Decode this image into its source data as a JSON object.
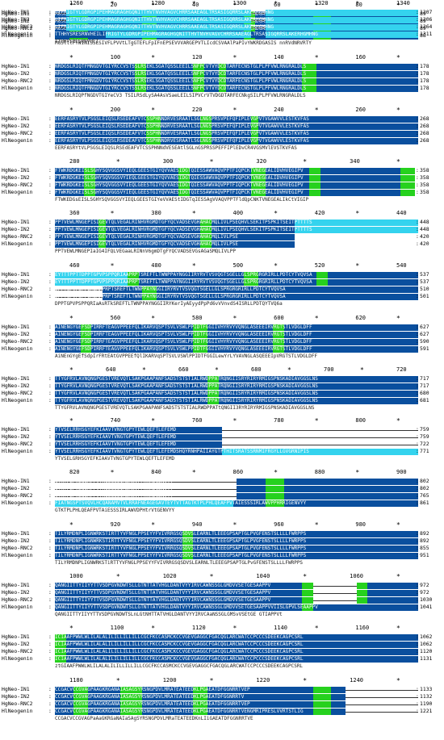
{
  "sequences": [
    "HgNeo-IN1",
    "HgNeo-IN2",
    "HgNeo-RNC2",
    "HlNeogenin"
  ],
  "colors": {
    "identical": "#0a4f9e",
    "similar": "#26d11e",
    "insert": "#34d3ee",
    "text_on_dark": "#ffffff"
  },
  "blocks": [
    {
      "ruler": [
        "*",
        "20",
        "*",
        "40",
        "*",
        "60",
        "*",
        "80",
        "*"
      ],
      "end_numbers": [
        "89",
        "89",
        "89",
        "88"
      ],
      "rows": [
        "MGSLTLFTWINISSLSIVFLPVVTLTGGTEFLFPIFNEPSEVVVARGEPVTLICRVAAPPFAVVYWERDGASLSSNRNVRTY",
        "MGSLTLFTWINISSLSIVFLPVVTLTGGTEFLFPIFNEPSEVVVARGEPVTLICRVAAPPFAVVYWERDGASLSSNRNVRTY",
        "MGSLTLFTWINISSLSIVFLPVVTLTGGTEFLFPIFNEPSEVVVARGEPVTLICRVAAPPFAVVYWERDGASLSSNRNVRTY",
        "MGSLTLFTWINISSLSIVFLPVVTLTGGTEFLFPIFNEPSEVVVARGEPVTLICRVAAPPFAVVYWERDGASLSSNRNVRTY"
      ],
      "consensus": "MGSltlFTWINISSLSIVFLPVVtLTgGTEFLFpIFnEPSEVVVARGEPVTLIcdCSVAAlPaPIvYWKRDGASIS nnRVdNRVRTY"
    },
    {
      "ruler": [
        "*",
        "100",
        "*",
        "120",
        "*",
        "140",
        "*",
        "160",
        "*"
      ],
      "end_numbers": [
        "178",
        "178",
        "178",
        "178"
      ],
      "rows": [
        "NRDGSLRIQTFMNGDVTGIYRCCVSTSSLRSEKLSGATQSSLEEILSNFPCVTVYDCDTARFECNSTGLPLPFVWLRNGRALDLS",
        "NRDGSLRIQTFMNGDVTGIYRCCVSTSSLRSEKLSGATQSSLEEILSNFPCVTVYDCDTARFECNSTGLPLPFVWLRNGRALDLS",
        "NRDGSLRIQTFMNGDVTGIYRCCVSTSSLRSEKLSGATQSSLEEILSNFPCVTVYDCDTARFECNSTGLPLPFVWLRNGRALDLS",
        "NRDGSLRIQTFMNGDVTGIYRCCVSTSSLRSEKLSGATQSSLEEILSNFPCVTVYDCDTARFECNSTGLPLPFVWLRNGRALDLS"
      ],
      "consensus": "NRDGSLRIQPfNGDVTGIYeCV3 TSILRSdLySA4AsVSaeLEILSIPVCrVTVDGDTARFECNkgSILPLPFVWLRNGRALDLS"
    },
    {
      "ruler": [
        "*",
        "200",
        "*",
        "220",
        "*",
        "240",
        "*",
        "260",
        "*"
      ],
      "end_numbers": [
        "268",
        "268",
        "268",
        "268"
      ],
      "rows": [
        "EERFASRYTVLPSGSLEIQSLRSEDEAFVTCSSPHNNDRVESRAATLSGLNGSPRSVPEFQFIPLEVGPVTVGAWVVLESTKVFAS",
        "EERFASRYTVLPSGSLEIQSLRSEDEAFVTCSSPHNNDRVESRAATLSGLNGSPRSVPEFQFIPLEVGPVTVGAWVVLESTKVFAS",
        "EERFASRYTVLPSGSLEIQSLRSEDEAFVTCSSPHNNDRVESRAATLSGLNGSPRSVPEFQFIPLEVGPVTVGAWVVLESTKVFAS",
        "EERFASRYTVLPSGSLEIQSLRSEDEAFVTCSSPHNNDRVESRAATLSGLNGSPRSVPEFQFIPLEVGPVTVGAWVVLESTKVFAS"
      ],
      "consensus": "EERFASRYtVLPSGSLEIQSLRSEdEAFVTCSSPHNNdVESEAtlSGLnGSPRSSPEFFIPlEDvCR4VGSMVlEVSTKVFAS"
    },
    {
      "ruler": [
        "280",
        "*",
        "300",
        "*",
        "320",
        "*",
        "340",
        "*"
      ],
      "end_numbers": [
        "358",
        "358",
        "358",
        "358"
      ],
      "rows": [
        "FTWKRDGKEISLSGHYSQVGGSVYIEQLGEESTGIYQVVAESIDGTQIESSAWVAQVPPTFIQPCKTVNEGEALIDVHVEGIPV",
        "FTWKRDGKEISLSGHYSQVGGSVYIEQLGEESTGIYQVVAESIDGTQIESSAWVAQVPPTFIQPCKTVNEGEALIDVHVEGIPV",
        "FTWKRDGKEISLSGHYSQVGGSVYIEQLGEESTGIYQVVAESIDGTQIESSAWVAQVPPTFIQPCKTVNEGEALIDVHVEGIPV",
        "FTWKRDGKEISLSGHYSQVGGSVYIEQLGEESTGIYQVVAESIDGTQIESSAWVAQVPPTFIQPCKTVNEGEALIDVHVEGIPV"
      ],
      "consensus": "FTWKEDGsEISLSGHYSQVGGSVYIEQLGEESTGIYeVVAEStIDGTqIESSAgVVAQVPPTFldQpCNKTVNEGEALIkCtVIGIP"
    },
    {
      "ruler": [
        "360",
        "*",
        "380",
        "*",
        "400",
        "*",
        "420",
        "*",
        "440"
      ],
      "end_numbers": [
        "448",
        "448",
        "420",
        "420"
      ],
      "rows": [
        "PPTVEWLMNGEPISIGEVTQLVEGALRINHVRGMDTGFYQCVADSEVGHAHACMQLIVLPSEQHVLSEKITPSPKITSEITPTTTTS",
        "PPTVEWLMNGEPISIGEVTQLVEGALRINHVRGMDTGFYQCVADSEVGHAHACMQLIVLPSEQHVLSEKITPSPKITSEITPTTTTS",
        "PPTVEWLMNGEPISIGEVTQLVEGALRINHVRGMDTGFYQCVADSEVGHAHACMQLIVLPSE",
        "PPTVEWLMNGEPISIGEVTQLVEGALRINHVRGMDTGFYQCVADSEVGHAHACMQLIVLPSE"
      ],
      "consensus": "PPTVEWLMNGEPIaIG4IFQLVEGaaLRINnV6gmDTgFYQCVADSEVGsAGaSMQLIVLPP"
    },
    {
      "ruler": [
        "460",
        "*",
        "480",
        "*",
        "500",
        "*",
        "520",
        "*",
        "540"
      ],
      "end_numbers": [
        "537",
        "537",
        "510",
        "501"
      ],
      "rows": [
        "EYTTTPPTTDPPTGPVPSPPQRIAAPRPTSREFTLTWNPPAYNGGIIRYRVTVSVQGTSGELLGLSPRGRGRIRLLPDTCYTVQVSA",
        "EYTTTPPTTDPPTGPVPSPPQRIAAPRPTSREFTLTWNPPAYNGGIIRYRVTVSVQGTSGELLGLSPRGRGRIRLLPDTCYTVQVSA",
        "DPPTGPVPSPPQRIAAPRPTSREFTLTWNPPAYNGGIIRYRVTVSVQGTSGELLGLSPRGRGRIRLLPDTCYTVQVSA",
        "DPPTGPVPSPPQRIAAPRPTSREFTLTWNPPAYNGGIIRYRVTVSVQGTSGELLGLSPRGRGRIRLLPDTCYTVQVSA"
      ],
      "consensus": "DPPTGPVPSPPQRIaAsRTkSREFTLTWNPPAYNGGIIRYKerIyAEyydPpPd6vVVnvdS4ISRLLPDTQYTVQ6a"
    },
    {
      "ruler": [
        "*",
        "560",
        "*",
        "580",
        "*",
        "600",
        "*",
        "620",
        "*"
      ],
      "end_numbers": [
        "627",
        "627",
        "590",
        "591"
      ],
      "rows": [
        "AINENGYGEFSDPIRRFTEAGVPPEEFQLIKARVQSPTSVLVSWLPPIDTFGGIIVHYRVYVQNGLASEEEIRVRGTSTLVDGLDFF",
        "AINENGYGEFSDPIRRFTEAGVPPEEFQLIKARVQSPTSVLVSWLPPIDTFGGIIVHYRVYVQNGLASEEEIRVRGTSTLVDGLDFF",
        "AINENGYGEFSDPIRRFTEAGVPPEEFQLIKARVQSPTSVLVSWLPPIDTFGGIIVHYRVYVQNGLASEEEIRVRGTSTLVDGLDFF",
        "AINENGYGEFSDPIRRFTEAGVPPEEFQLIKARVQSPTSVLVSWLPPIDTFGGIIVHYRVYVQNGLASEEEIRVRGTSTLVDGLDFF"
      ],
      "consensus": "AiNEnGYgEfSdpIrFRtEAtGVPPEEfQlIKARVqSPTSVLVSWlPPIDTFGGILewYrLYVAVNGLASQEEEIpVRGTSTLVDGLDFF"
    },
    {
      "ruler": [
        "*",
        "640",
        "*",
        "660",
        "*",
        "680",
        "*",
        "700",
        "*",
        "720"
      ],
      "end_numbers": [
        "717",
        "717",
        "680",
        "681"
      ],
      "rows": [
        "TTYGFRVLAVNQNGPGESTVREVQTLSAKPGAAPANFSADSTSTSTIALRWDPPATRQNGIISRYRIRYRMIGSPNSKADIAVGGSLNS",
        "TTYGFRVLAVNQNGPGESTVREVQTLSAKPGAAPANFSADSTSTSTIALRWDPPATRQNGIISRYRIRYRMIGSPNSKADIAVGGSLNS",
        "TTYGFRVLAVNQNGPGESTVREVQTLSAKPGAAPANFSADSTSTSTIALRWDPPATRQNGIISRYRIRYRMIGSPNSKADIAVGGSLNS",
        "TTYGFRVLAVNQNGPGESTVREVQTLSAKPGAAPANFSADSTSTSTIALRWDPPATRQNGIISRYRIRYRMIGSPNSKADIAVGGSLNS"
      ],
      "consensus": "TTYGFRVLAVNQNGPGESTVREVQTLSAKPGAAPANFSADSTSTSTIALRWDPPATtQNGII3RYRIRYRMIGSPNSKADIAVGGSLNS"
    },
    {
      "ruler": [
        "*",
        "740",
        "*",
        "760",
        "*",
        "780",
        "*",
        "800",
        "*"
      ],
      "end_numbers": [
        "759",
        "759",
        "722",
        "771"
      ],
      "rows": [
        "YTVSELRRHSGYEFKIAAVTVNGTGPYTEWLQEFTLEFEMD",
        "YTVSELRRHSGYEFKIAAVTVNGTGPYTEWLQEFTLEFEMD",
        "YTVSELRRHSGYEFKIAAVTVNGTGPYTEWLQEFTLEFEMD",
        "YTVSELRRHSGYEFKIAAVTVNGTGPYTEWLQEFTLEFEMDSHQYRNHPAIIAYGTPTHITSRATSSRNMIFRGYLLGVGRNIPIS"
      ],
      "consensus": "YTVSELGRHSGYEFKIAAVTVNGTGPYTEWLQEFTLEFEMD"
    },
    {
      "ruler": [
        "820",
        "*",
        "840",
        "*",
        "860",
        "*",
        "880",
        "*",
        "900"
      ],
      "end_numbers": [
        "802",
        "802",
        "765",
        "861"
      ],
      "rows": [
        "GTKTPLPHLQEAFPVTAIESSSIRLAWVPPHRRIGENVYY",
        "GTKTPLPHLQEAFPVTAIESSSIRLAWVPPHRRIGENVYY",
        "GTKTPLPHLQEAFPVTAIESSSIRLAWVPPHRRIGENVYY",
        "FIATNGSPTSVQVLHCQANAMVTVLRRAFNEAGEGAVTEYTVTTAGTKTPLPHLQEAFPVTAIESSSIRLAWVPPHRRIGENVYY"
      ],
      "consensus": "GTKTPLPHLQEAFPVTAiESSSIRLAWVDPHtrVtGENVYY"
    },
    {
      "ruler": [
        "*",
        "920",
        "*",
        "940",
        "*",
        "960",
        "*",
        "980",
        "*"
      ],
      "end_numbers": [
        "892",
        "892",
        "855",
        "951"
      ],
      "rows": [
        "TILYRMDNPLIGNWRKSTIRTTYVFNGLPPSEYYFVIVRRGSQSDVSLEARNLTLEEEGPSAPTGLPVGFENSTSLLLLFWRPPS",
        "TILYRMDNPLIGNWRKSTIRTTYVFNGLPPSEYYFVIVRRGSQSDVSLEARNLTLEEEGPSAPTGLPVGFENSTSLLLLFWRPPS",
        "TILYRMDNPLIGNWRKSTIRTTYVFNGLPPSEYYFVIVRRGSQSDVSLEARNLTLEEEGPSAPTGLPVGFENSTSLLLLFWRPPS",
        "TILYRMDNPLIGNWRKSTIRTTYVFNGLPPSEYYFVIVRRGSQSDVSLEARNLTLEEEGPSAPTGLPVGFENSTSLLLLFWRPPS"
      ],
      "consensus": "TILYRMDNPLIGNWRKSTiRTTYVFNGLPPSEYYFVIVRRGSQSDVSLEARNLTLEEEGPSAPTGLPvGFENSTSLLLLFWRPPS"
    },
    {
      "ruler": [
        "1000",
        "*",
        "1020",
        "*",
        "1040",
        "*",
        "1060",
        "*"
      ],
      "end_numbers": [
        "972",
        "972",
        "1030",
        "1041"
      ],
      "rows": [
        "QANGIITTYIIYYTTVSDPGVNDWTSLLGTNTTATVHGLDANTVYYIRVCAWNSSGLGMDVVSETGESAAPPV",
        "QANGIITTYIIYYTTVSDPGVNDWTSLLGTNTTATVHGLDANTVYYIRVCAWNSSGLGMDVVSETGESAAPPV",
        "QANGIITTYIIYYTTVSDPGVNDWTSLLGTNTTATVHGLDANTVYYIRVCAWNSSGLGMDVVSETGESAAPPV",
        "QANGIITTYIIYYTTVSDPGVNDWTSLLGTNTTATVHGLDANTVYYIRVCAWNSSGLGMDVVSETGESAAPPVVIISLGPVLSEAAPPV"
      ],
      "consensus": "QANGIITTYIIYYTTVSDPGVNDWTSLnLGtNHTTATVHGLDANTVYYIRVCAaNSSGLGMSvVSEtGE     GTIAPPVt"
    },
    {
      "ruler": [
        "*",
        "1100",
        "*",
        "1120",
        "*",
        "1140",
        "*",
        "1160",
        "*"
      ],
      "end_numbers": [
        "1062",
        "1062",
        "1120",
        "1131"
      ],
      "rows": [
        "ICIAAFPWWLWLILALALILILLILLILLCGCFKCCASMCKCCVGEVGAGGCFGACQGLARCWATCCPCCCSDEEKCAGPCSRL",
        "ICIAAFPWWLWLILALALILILLILLILLCGCFKCCASMCKCCVGEVGAGGCFGACQGLARCWATCCPCCCSDEEKCAGPCSRL",
        "ICIAAFPWWLWLILALALILILLILLILLCGCFKCCASMCKCCVGEVGAGGCFGACQGLARCWATCCPCCCSDEEKCAGPCSRL",
        "ICIAAFPWWLWLILALALILILLILLILLCGCFKCCASMCKCCVGEVGAGGCFGACQGLARCWATCCPCCCSDEEKCAGPCSRL"
      ],
      "consensus": "ztGIAAFPWWLWLILALALILILLILLILLCGCFKCCASMCKCCVGEVGAGGCFGACQGLARCWATCCPCCCSDEEKCAGPCSRL"
    },
    {
      "ruler": [
        "1180",
        "*",
        "1200",
        "*",
        "1220",
        "*",
        "1240",
        "*"
      ],
      "end_numbers": [
        "1133",
        "1132",
        "1190",
        "1221"
      ],
      "rows": [
        "CCGACVCCGVAGPAAGKRGANAIASAGSYRSNGPDVLMRATEATEEDKLPGAEATDFGGNRRTVEP",
        "CCGACVCCGVAGPAAGKRGANAIASAGSYRSNGPDVLMRATEATEEDKLPGAEATDFGGNRRTV",
        "CCGACVCCGVAGPAAGKRGANAIASAGSYRSNGPDVLMRATEATEEDKLPGAEATDFGGNRRTVEP",
        "CCGACVCCGVAGPAAGKRGANAIASAGSYRSNGPDVLMRATEATEEDKLPGAEATDFGGNRRTVENGMRIPRESLVVRTSTLIG"
      ],
      "consensus": "CCGACVCCGVAGPaAaGKRGaNAIaSAgSYRSNGPDVLMRaTEATEEDKnLIiGAEATDFGGNRRTVE"
    },
    {
      "ruler": [
        "1260",
        "*",
        "1280",
        "*",
        "1300",
        "*",
        "1320",
        "*",
        "1340"
      ],
      "end_numbers": [
        "1207",
        "1206",
        "1264",
        "1311"
      ],
      "rows": [
        "LIFRIGTYLGDRGPIPEHMAGRAGHGQNITTHVTNVHVAGVCHRRSAAEAGLTRSASIGQRRSLAKERHGMHNG",
        "LIFRIGTYLGDRGPIPEHMAGRAGHGQNITTHVTNVHVAGVCHRRSAAEAGLTRSASIGQRRSLAKERHGMHNG",
        "LIFRIGTYLGDRGPIPEHMAGRAGHGQNITTHVTNVHVAGVCHRRSAAEAGLTRSASIGQRRSLAKERHGMHNG",
        "TTHHYSRESRNVHEILIFRIGTYLGDRGPIPEHMAGRAGHGQNITTHVTNVHVAGVCHRRSAAEAGLTRSASIGQRRSLAKERHGMHNG"
      ],
      "consensus": "TTHHYSRESRNVHEI"
    }
  ]
}
